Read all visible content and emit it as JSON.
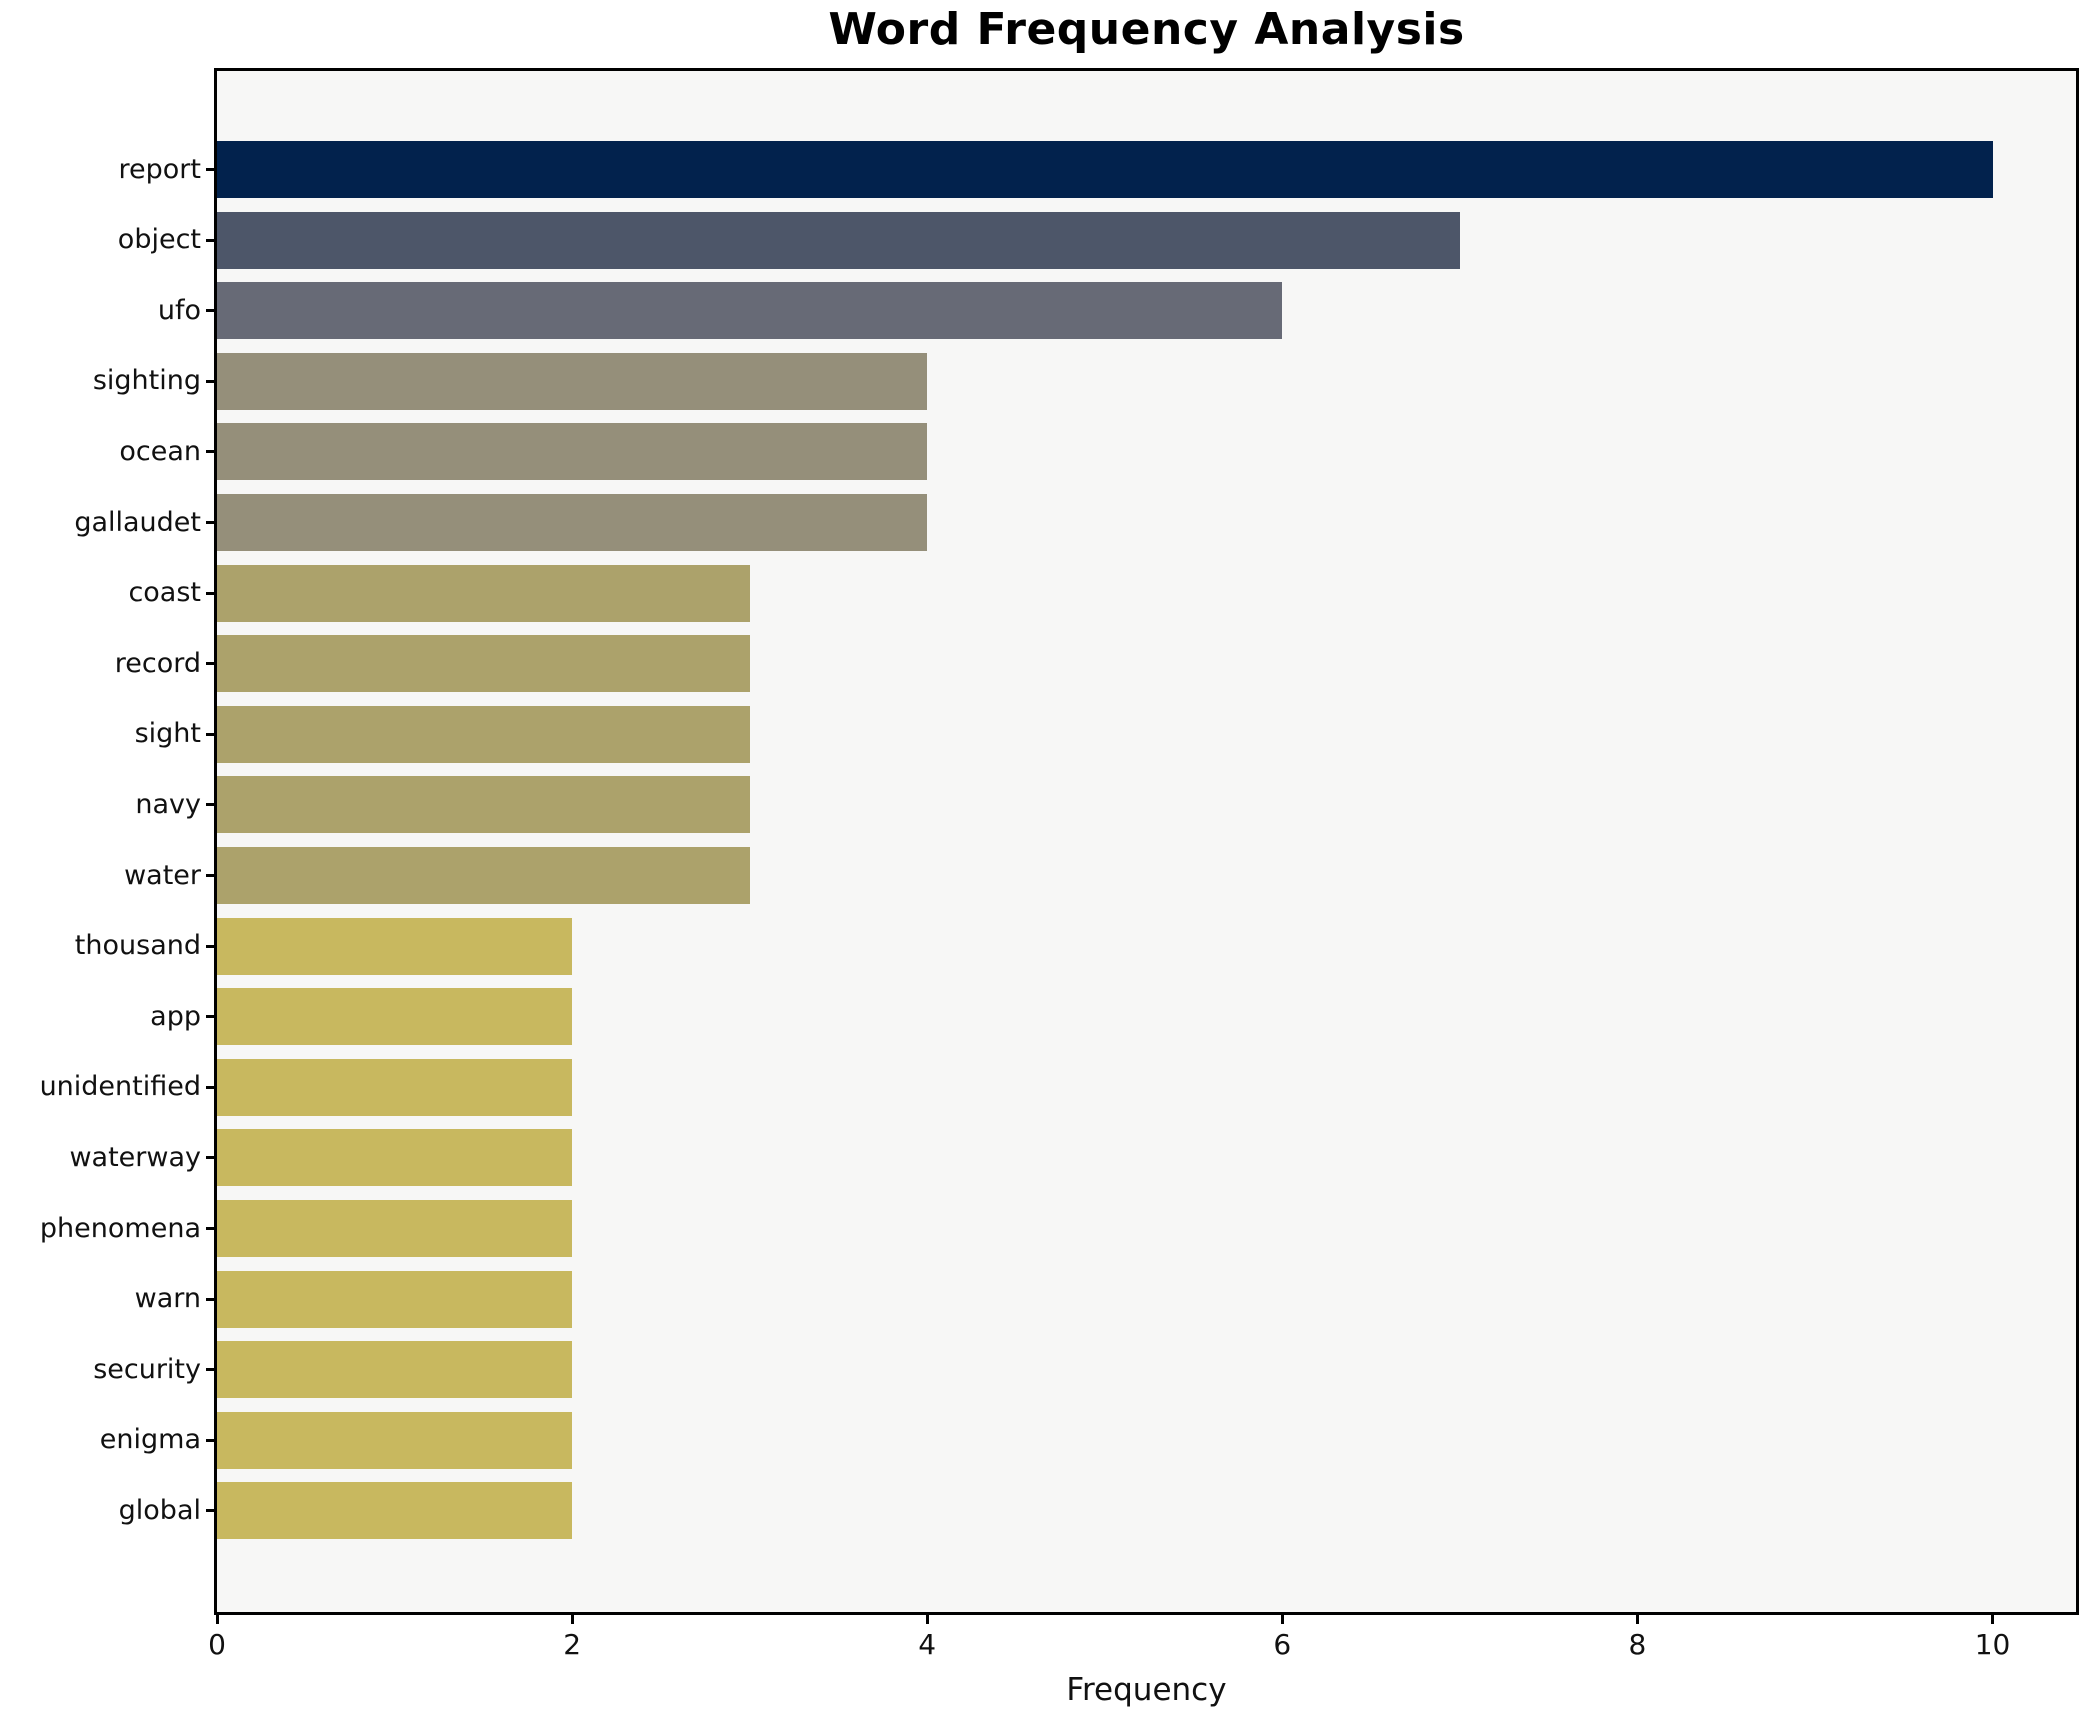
{
  "chart_data": {
    "type": "bar",
    "orientation": "horizontal",
    "title": "Word Frequency Analysis",
    "xlabel": "Frequency",
    "ylabel": "",
    "categories": [
      "report",
      "object",
      "ufo",
      "sighting",
      "ocean",
      "gallaudet",
      "coast",
      "record",
      "sight",
      "navy",
      "water",
      "thousand",
      "app",
      "unidentified",
      "waterway",
      "phenomena",
      "warn",
      "security",
      "enigma",
      "global"
    ],
    "values": [
      10,
      7,
      6,
      4,
      4,
      4,
      3,
      3,
      3,
      3,
      3,
      2,
      2,
      2,
      2,
      2,
      2,
      2,
      2,
      2
    ],
    "bar_colors": [
      "#02224d",
      "#4d5669",
      "#676a76",
      "#958f7a",
      "#958f7a",
      "#958f7a",
      "#aca26b",
      "#aca26b",
      "#aca26b",
      "#aca26b",
      "#aca26b",
      "#c8b85f",
      "#c8b85f",
      "#c8b85f",
      "#c8b85f",
      "#c8b85f",
      "#c8b85f",
      "#c8b85f",
      "#c8b85f",
      "#c8b85f"
    ],
    "xticks": [
      0,
      2,
      4,
      6,
      8,
      10
    ],
    "xlim": [
      0,
      10.47
    ],
    "grid": false,
    "legend": false,
    "plot_background": "#f7f7f6",
    "axis_color": "#000000",
    "text_color": "#111111"
  }
}
